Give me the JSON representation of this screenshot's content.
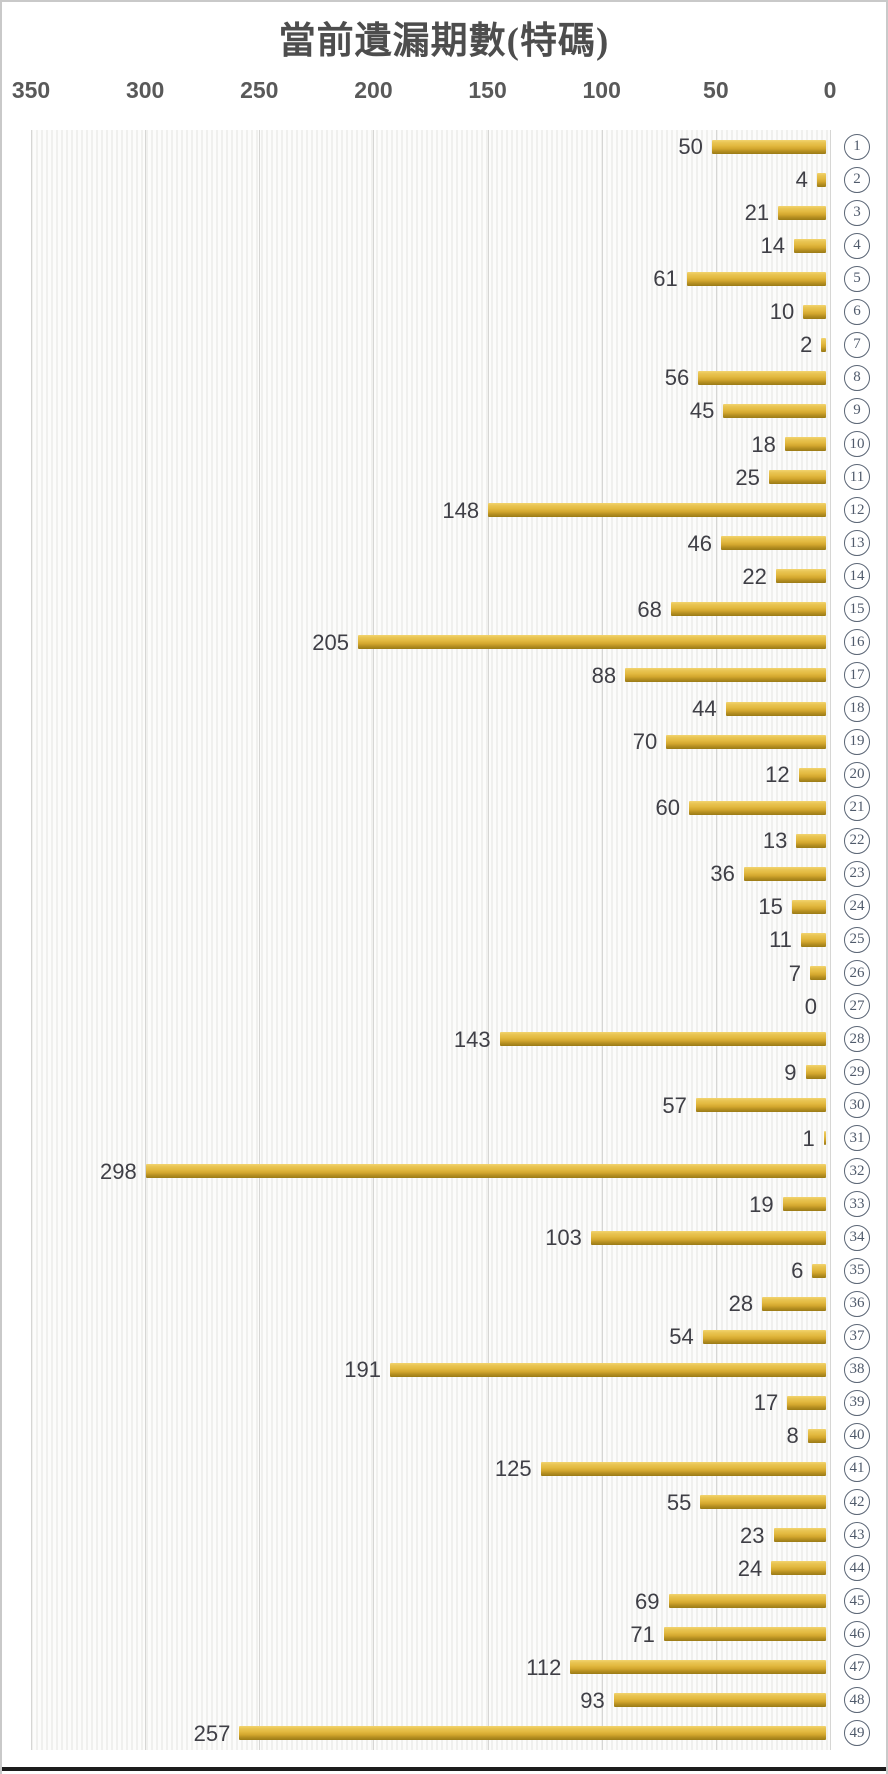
{
  "page": {
    "title": "當前遺漏期數(特碼)"
  },
  "chart_data": {
    "type": "bar",
    "orientation": "horizontal",
    "title": "當前遺漏期數(特碼)",
    "value_axis": {
      "position": "top",
      "reversed": true,
      "min": 0,
      "max": 350,
      "tick_interval": 50,
      "ticks": [
        350,
        300,
        250,
        200,
        150,
        100,
        50,
        0
      ]
    },
    "category_label_style": "circled-number",
    "categories": [
      1,
      2,
      3,
      4,
      5,
      6,
      7,
      8,
      9,
      10,
      11,
      12,
      13,
      14,
      15,
      16,
      17,
      18,
      19,
      20,
      21,
      22,
      23,
      24,
      25,
      26,
      27,
      28,
      29,
      30,
      31,
      32,
      33,
      34,
      35,
      36,
      37,
      38,
      39,
      40,
      41,
      42,
      43,
      44,
      45,
      46,
      47,
      48,
      49
    ],
    "values": [
      50,
      4,
      21,
      14,
      61,
      10,
      2,
      56,
      45,
      18,
      25,
      148,
      46,
      22,
      68,
      205,
      88,
      44,
      70,
      12,
      60,
      13,
      36,
      15,
      11,
      7,
      0,
      143,
      9,
      57,
      1,
      298,
      19,
      103,
      6,
      28,
      54,
      191,
      17,
      8,
      125,
      55,
      23,
      24,
      69,
      71,
      112,
      93,
      257
    ],
    "data_labels": "shown-at-bar-end",
    "legend": "none",
    "gridlines": "vertical",
    "colors": {
      "bar_top": "#F2D46F",
      "bar_mid": "#E2B83F",
      "bar_bottom": "#9A7A16",
      "gridline": "#D6D6D4",
      "plot_stripe": "#F0F0EE",
      "plot_background": "#FCFCFB",
      "title_text": "#4D4D4D",
      "axis_text": "#595959",
      "value_text": "#3F3F46",
      "category_text": "#4F5A6B",
      "frame_border": "#C9C9C9",
      "bottom_rule": "#1C1C1C"
    }
  }
}
